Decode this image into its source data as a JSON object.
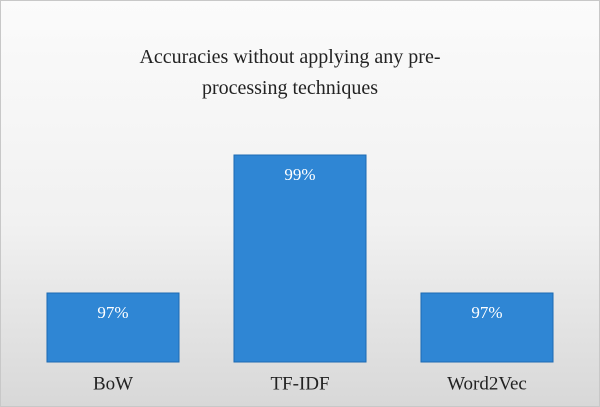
{
  "chart_data": {
    "type": "bar",
    "title": "Accuracies without applying any pre-processing techniques",
    "categories": [
      "BoW",
      "TF-IDF",
      "Word2Vec"
    ],
    "values": [
      97,
      99,
      97
    ],
    "value_labels": [
      "97%",
      "99%",
      "97%"
    ],
    "color": "#2f86d4",
    "ylim": [
      96,
      100
    ]
  }
}
